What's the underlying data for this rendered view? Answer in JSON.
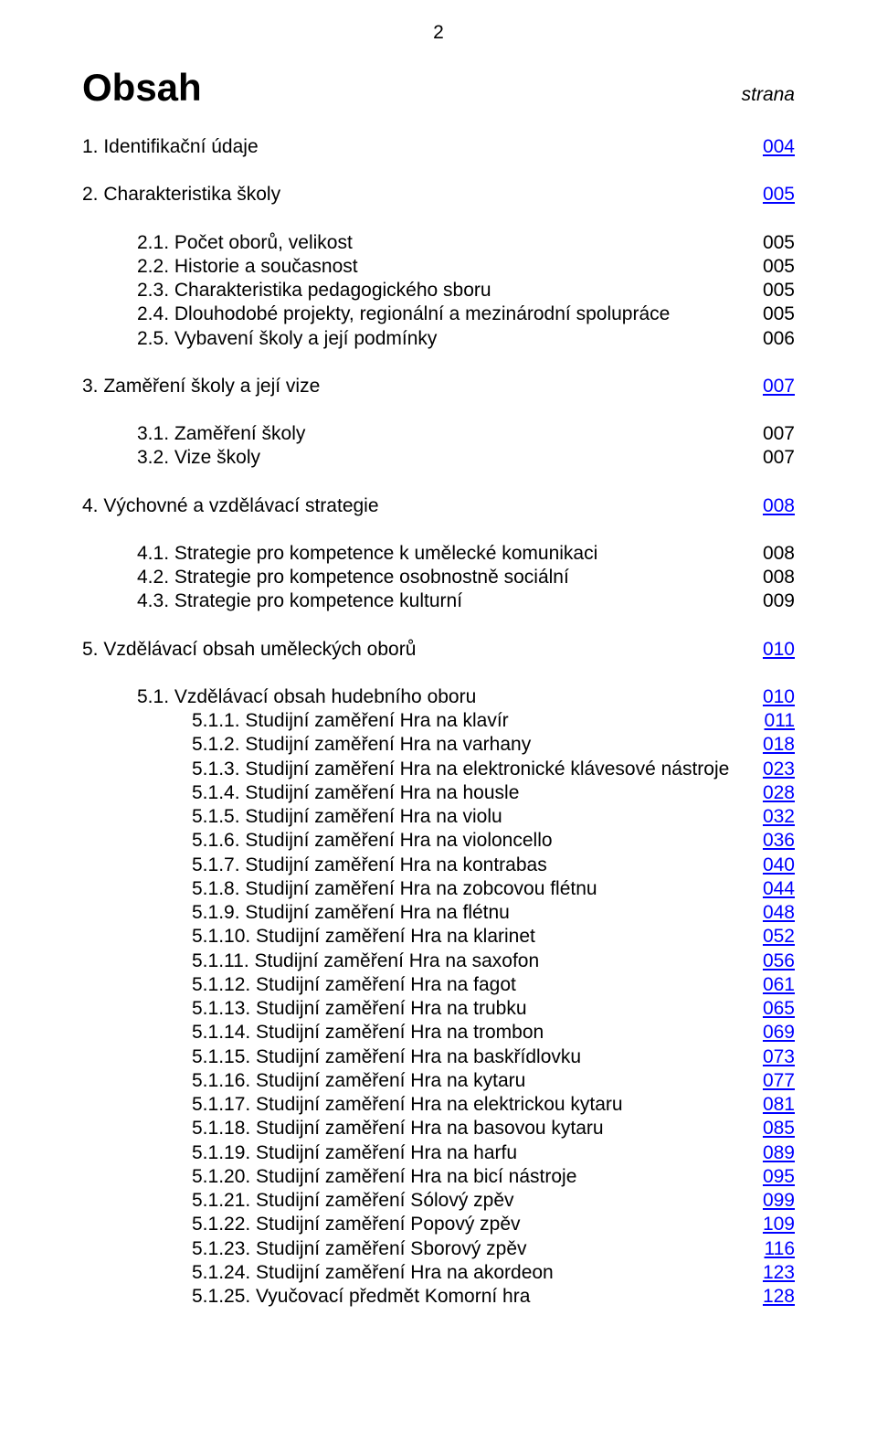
{
  "page_number": "2",
  "heading": "Obsah",
  "strana_label": "strana",
  "colors": {
    "text": "#000000",
    "link": "#0000ff",
    "background": "#ffffff"
  },
  "fonts": {
    "body_size_pt": 16,
    "heading_size_pt": 32,
    "pagenum_size_pt": 16
  },
  "toc": [
    {
      "level": 0,
      "label": "1. Identifikační údaje",
      "page": "004",
      "link": true,
      "gap_after": true
    },
    {
      "level": 0,
      "label": "2. Charakteristika školy",
      "page": "005",
      "link": true,
      "gap_after": true
    },
    {
      "level": 1,
      "label": "2.1. Počet oborů, velikost",
      "page": "005",
      "link": false
    },
    {
      "level": 1,
      "label": "2.2. Historie a současnost",
      "page": "005",
      "link": false
    },
    {
      "level": 1,
      "label": "2.3. Charakteristika pedagogického sboru",
      "page": "005",
      "link": false
    },
    {
      "level": 1,
      "label": "2.4. Dlouhodobé projekty, regionální a mezinárodní spolupráce",
      "page": "005",
      "link": false
    },
    {
      "level": 1,
      "label": "2.5. Vybavení školy a její podmínky",
      "page": "006",
      "link": false,
      "gap_after": true
    },
    {
      "level": 0,
      "label": "3. Zaměření školy a její vize",
      "page": "007",
      "link": true,
      "gap_after": true
    },
    {
      "level": 1,
      "label": "3.1. Zaměření školy",
      "page": "007",
      "link": false
    },
    {
      "level": 1,
      "label": "3.2. Vize školy",
      "page": "007",
      "link": false,
      "gap_after": true
    },
    {
      "level": 0,
      "label": "4. Výchovné a vzdělávací strategie",
      "page": "008",
      "link": true,
      "gap_after": true
    },
    {
      "level": 1,
      "label": "4.1. Strategie pro kompetence k umělecké komunikaci",
      "page": "008",
      "link": false
    },
    {
      "level": 1,
      "label": "4.2. Strategie pro kompetence osobnostně sociální",
      "page": "008",
      "link": false
    },
    {
      "level": 1,
      "label": "4.3. Strategie pro kompetence kulturní",
      "page": "009",
      "link": false,
      "gap_after": true
    },
    {
      "level": 0,
      "label": "5. Vzdělávací obsah uměleckých oborů",
      "page": "010",
      "link": true,
      "gap_after": true
    },
    {
      "level": 1,
      "label": "5.1. Vzdělávací obsah hudebního oboru",
      "page": "010",
      "link": true
    },
    {
      "level": 2,
      "label": "5.1.1. Studijní zaměření Hra na klavír",
      "page": "011",
      "link": true
    },
    {
      "level": 2,
      "label": "5.1.2. Studijní zaměření Hra na varhany",
      "page": "018",
      "link": true
    },
    {
      "level": 2,
      "label": "5.1.3. Studijní zaměření Hra na elektronické klávesové nástroje",
      "page": "023",
      "link": true
    },
    {
      "level": 2,
      "label": "5.1.4. Studijní zaměření Hra na housle",
      "page": "028",
      "link": true
    },
    {
      "level": 2,
      "label": "5.1.5. Studijní zaměření Hra na violu",
      "page": "032",
      "link": true
    },
    {
      "level": 2,
      "label": "5.1.6. Studijní zaměření Hra na violoncello",
      "page": "036",
      "link": true
    },
    {
      "level": 2,
      "label": "5.1.7. Studijní zaměření Hra na kontrabas",
      "page": "040",
      "link": true
    },
    {
      "level": 2,
      "label": "5.1.8. Studijní zaměření Hra na zobcovou flétnu",
      "page": "044",
      "link": true
    },
    {
      "level": 2,
      "label": "5.1.9. Studijní zaměření Hra na flétnu",
      "page": "048",
      "link": true
    },
    {
      "level": 2,
      "label": "5.1.10. Studijní zaměření Hra na klarinet",
      "page": "052",
      "link": true
    },
    {
      "level": 2,
      "label": "5.1.11. Studijní zaměření Hra na saxofon",
      "page": "056",
      "link": true
    },
    {
      "level": 2,
      "label": "5.1.12. Studijní zaměření Hra na fagot",
      "page": "061",
      "link": true
    },
    {
      "level": 2,
      "label": "5.1.13. Studijní zaměření Hra na trubku",
      "page": "065",
      "link": true
    },
    {
      "level": 2,
      "label": "5.1.14. Studijní zaměření Hra na trombon",
      "page": "069",
      "link": true
    },
    {
      "level": 2,
      "label": "5.1.15. Studijní zaměření Hra na baskřídlovku",
      "page": "073",
      "link": true
    },
    {
      "level": 2,
      "label": "5.1.16. Studijní zaměření Hra na kytaru",
      "page": "077",
      "link": true
    },
    {
      "level": 2,
      "label": "5.1.17. Studijní zaměření Hra na elektrickou kytaru",
      "page": "081",
      "link": true
    },
    {
      "level": 2,
      "label": "5.1.18. Studijní zaměření Hra na basovou kytaru",
      "page": "085",
      "link": true
    },
    {
      "level": 2,
      "label": "5.1.19. Studijní zaměření Hra na harfu",
      "page": "089",
      "link": true
    },
    {
      "level": 2,
      "label": "5.1.20. Studijní zaměření Hra na bicí nástroje",
      "page": "095",
      "link": true
    },
    {
      "level": 2,
      "label": "5.1.21. Studijní zaměření Sólový zpěv",
      "page": "099",
      "link": true
    },
    {
      "level": 2,
      "label": "5.1.22. Studijní zaměření Popový zpěv",
      "page": "109",
      "link": true
    },
    {
      "level": 2,
      "label": "5.1.23. Studijní zaměření Sborový zpěv",
      "page": "116",
      "link": true
    },
    {
      "level": 2,
      "label": "5.1.24. Studijní zaměření Hra na akordeon",
      "page": "123",
      "link": true
    },
    {
      "level": 2,
      "label": "5.1.25. Vyučovací předmět Komorní hra",
      "page": "128",
      "link": true
    }
  ]
}
